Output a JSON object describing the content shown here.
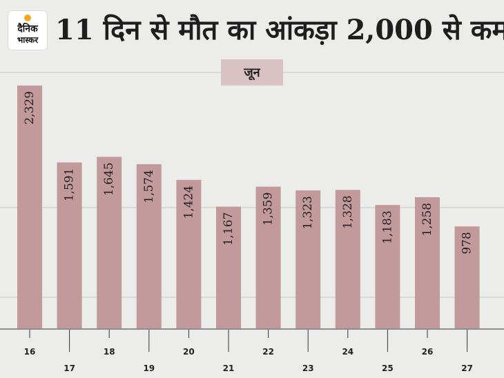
{
  "header": {
    "title": "11 दिन से मौत का आंकड़ा 2,000 से कम",
    "logo_line1": "दैनिक",
    "logo_line2": "भास्कर"
  },
  "colors": {
    "bar": "#c39a9c",
    "label_bg": "#d8c2c3",
    "background": "#ececea"
  },
  "chart_data": {
    "type": "bar",
    "title": "11 दिन से मौत का आंकड़ा 2,000 से कम",
    "group_label": "जून",
    "categories": [
      "16",
      "17",
      "18",
      "19",
      "20",
      "21",
      "22",
      "23",
      "24",
      "25",
      "26",
      "27"
    ],
    "values": [
      2329,
      1591,
      1645,
      1574,
      1424,
      1167,
      1359,
      1323,
      1328,
      1183,
      1258,
      978
    ],
    "value_labels": [
      "2,329",
      "1,591",
      "1,645",
      "1,574",
      "1,424",
      "1,167",
      "1,359",
      "1,323",
      "1,328",
      "1,183",
      "1,258",
      "978"
    ],
    "ylim": [
      0,
      2400
    ],
    "grid": false,
    "legend": "none"
  }
}
